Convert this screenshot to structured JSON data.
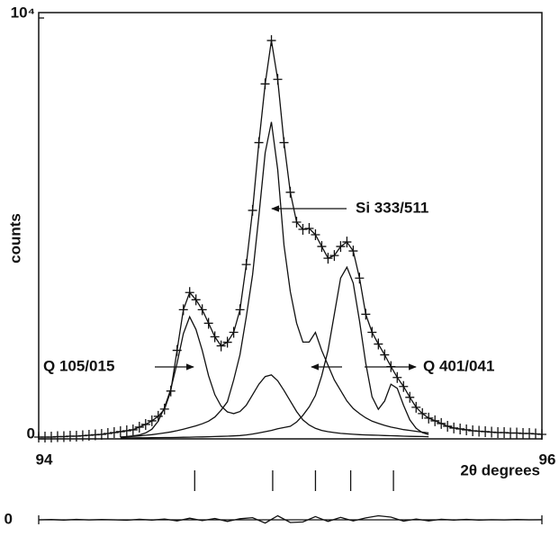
{
  "chart_data": {
    "type": "line",
    "xlabel": "2θ degrees",
    "ylabel": "counts",
    "xlim": [
      94,
      96
    ],
    "ylim": [
      0,
      10000
    ],
    "xticks": [
      94,
      96
    ],
    "yticks": [
      0,
      {
        "value": 10000,
        "label": "10⁴"
      }
    ],
    "series": [
      {
        "color": "#111111",
        "marker": "plus",
        "x": [
          94,
          94.025,
          94.05,
          94.075,
          94.1,
          94.125,
          94.15,
          94.175,
          94.2,
          94.225,
          94.25,
          94.275,
          94.3,
          94.325,
          94.35,
          94.375,
          94.4,
          94.425,
          94.45,
          94.475,
          94.5,
          94.525,
          94.55,
          94.575,
          94.6,
          94.625,
          94.65,
          94.675,
          94.7,
          94.725,
          94.75,
          94.775,
          94.8,
          94.825,
          94.85,
          94.875,
          94.9,
          94.925,
          94.95,
          94.975,
          95,
          95.025,
          95.05,
          95.075,
          95.1,
          95.125,
          95.15,
          95.175,
          95.2,
          95.225,
          95.25,
          95.275,
          95.3,
          95.325,
          95.35,
          95.375,
          95.4,
          95.425,
          95.45,
          95.475,
          95.5,
          95.525,
          95.55,
          95.575,
          95.6,
          95.625,
          95.65,
          95.675,
          95.7,
          95.725,
          95.75,
          95.775,
          95.8,
          95.825,
          95.85,
          95.875,
          95.9,
          95.925,
          95.95,
          95.975,
          96
        ],
        "values": [
          43,
          43,
          43,
          54,
          54,
          64,
          64,
          75,
          86,
          97,
          107,
          129,
          150,
          172,
          193,
          215,
          279,
          343,
          429,
          536,
          708,
          1137,
          2103,
          3069,
          3477,
          3305,
          3069,
          2747,
          2425,
          2210,
          2296,
          2532,
          3069,
          4142,
          5429,
          7039,
          8434,
          9464,
          8541,
          7039,
          5859,
          5150,
          4979,
          5000,
          4850,
          4571,
          4292,
          4356,
          4571,
          4678,
          4464,
          3820,
          2961,
          2532,
          2253,
          1996,
          1717,
          1459,
          1245,
          987,
          751,
          601,
          494,
          429,
          365,
          300,
          258,
          236,
          215,
          193,
          182,
          172,
          161,
          150,
          150,
          139,
          139,
          129,
          129,
          118,
          107
        ]
      },
      {
        "color": "#111111",
        "x": [
          94.325,
          94.35,
          94.375,
          94.4,
          94.425,
          94.45,
          94.475,
          94.5,
          94.525,
          94.55,
          94.575,
          94.6,
          94.625,
          94.65,
          94.675,
          94.7,
          94.725,
          94.75,
          94.775,
          94.8,
          94.825,
          94.85,
          94.875,
          94.9,
          94.925,
          94.95,
          94.975,
          95,
          95.025,
          95.05,
          95.075,
          95.1,
          95.125,
          95.15,
          95.175,
          95.2,
          95.225,
          95.25,
          95.275,
          95.3,
          95.325,
          95.35,
          95.375,
          95.4,
          95.425,
          95.45,
          95.475,
          95.5,
          95.525,
          95.55
        ],
        "values": [
          43,
          55,
          70,
          95,
          140,
          230,
          420,
          750,
          1180,
          1800,
          2500,
          2900,
          2600,
          2100,
          1500,
          1050,
          780,
          640,
          600,
          650,
          800,
          1050,
          1300,
          1480,
          1520,
          1380,
          1150,
          900,
          650,
          450,
          330,
          250,
          200,
          170,
          150,
          130,
          120,
          110,
          100,
          95,
          90,
          85,
          80,
          75,
          70,
          65,
          60,
          58,
          55,
          52
        ]
      },
      {
        "color": "#111111",
        "x": [
          94.325,
          94.35,
          94.375,
          94.4,
          94.425,
          94.45,
          94.475,
          94.5,
          94.525,
          94.55,
          94.575,
          94.6,
          94.625,
          94.65,
          94.675,
          94.7,
          94.725,
          94.75,
          94.775,
          94.8,
          94.825,
          94.85,
          94.875,
          94.9,
          94.925,
          94.95,
          94.975,
          95,
          95.025,
          95.05,
          95.075,
          95.1,
          95.125,
          95.15,
          95.175,
          95.2,
          95.225,
          95.25,
          95.275,
          95.3,
          95.325,
          95.35,
          95.375,
          95.4,
          95.425,
          95.45,
          95.475,
          95.5,
          95.525,
          95.55
        ],
        "values": [
          43,
          50,
          60,
          70,
          85,
          100,
          120,
          140,
          165,
          195,
          230,
          270,
          310,
          360,
          420,
          520,
          680,
          880,
          1400,
          2000,
          2900,
          3900,
          5300,
          6800,
          7530,
          6400,
          4600,
          3500,
          2750,
          2300,
          2300,
          2530,
          2100,
          1750,
          1400,
          1150,
          900,
          720,
          600,
          500,
          420,
          370,
          320,
          280,
          250,
          220,
          200,
          180,
          160,
          140
        ]
      },
      {
        "color": "#111111",
        "x": [
          94.325,
          94.35,
          94.375,
          94.4,
          94.425,
          94.45,
          94.475,
          94.5,
          94.525,
          94.55,
          94.575,
          94.6,
          94.625,
          94.65,
          94.675,
          94.7,
          94.725,
          94.75,
          94.775,
          94.8,
          94.825,
          94.85,
          94.875,
          94.9,
          94.925,
          94.95,
          94.975,
          95,
          95.025,
          95.05,
          95.075,
          95.1,
          95.125,
          95.15,
          95.175,
          95.2,
          95.225,
          95.25,
          95.275,
          95.3,
          95.325,
          95.35,
          95.375,
          95.4,
          95.425,
          95.45,
          95.475,
          95.5,
          95.525,
          95.55
        ],
        "values": [
          22,
          23,
          24,
          25,
          26,
          28,
          29,
          31,
          33,
          35,
          38,
          41,
          44,
          48,
          52,
          56,
          60,
          64,
          70,
          80,
          95,
          115,
          140,
          170,
          200,
          240,
          270,
          300,
          400,
          560,
          760,
          1030,
          1500,
          2100,
          2960,
          3820,
          4080,
          3700,
          2800,
          1800,
          1000,
          700,
          900,
          1300,
          1200,
          800,
          450,
          250,
          150,
          100
        ]
      }
    ],
    "annotations": [
      "Q 105/015",
      "Si 333/511",
      "Q 401/041"
    ],
    "reflections": [
      94.62,
      94.93,
      95.1,
      95.24,
      95.41
    ],
    "difference": {
      "x": [
        94,
        94.05,
        94.1,
        94.15,
        94.2,
        94.25,
        94.3,
        94.35,
        94.4,
        94.45,
        94.5,
        94.55,
        94.6,
        94.65,
        94.7,
        94.75,
        94.8,
        94.85,
        94.9,
        94.95,
        95,
        95.05,
        95.1,
        95.15,
        95.2,
        95.25,
        95.3,
        95.35,
        95.4,
        95.45,
        95.5,
        95.55,
        95.6,
        95.65,
        95.7,
        95.75,
        95.8,
        95.85,
        95.9,
        95.95,
        96
      ],
      "values": [
        0,
        10,
        -10,
        15,
        -5,
        10,
        0,
        -15,
        20,
        -10,
        30,
        -40,
        60,
        -30,
        50,
        -60,
        40,
        80,
        -120,
        150,
        -100,
        -80,
        120,
        -60,
        90,
        -40,
        70,
        150,
        100,
        -50,
        30,
        -40,
        20,
        -10,
        15,
        -10,
        5,
        -5,
        10,
        0,
        5
      ],
      "ylim": [
        -500,
        500
      ],
      "yticks": [
        0
      ]
    }
  }
}
